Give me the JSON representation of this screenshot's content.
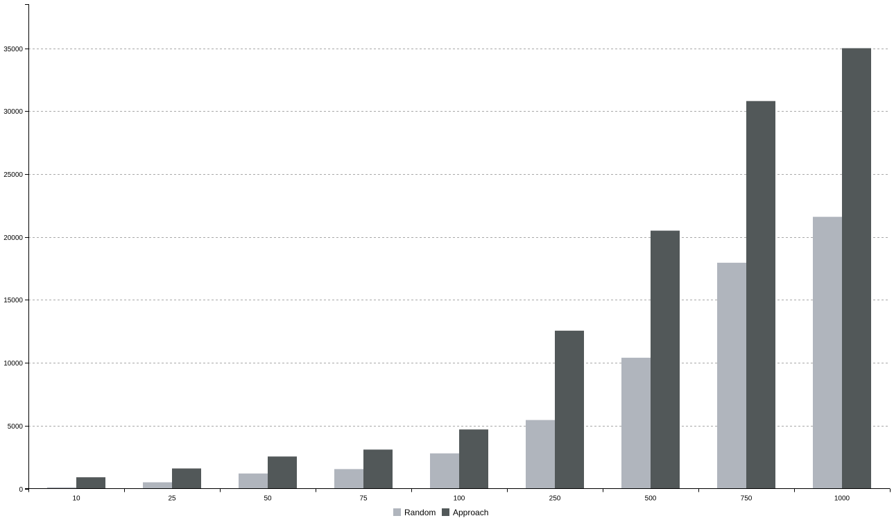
{
  "chart_data": {
    "type": "bar",
    "title": "",
    "xlabel": "",
    "ylabel": "",
    "categories": [
      "10",
      "25",
      "50",
      "75",
      "100",
      "250",
      "500",
      "750",
      "1000"
    ],
    "series": [
      {
        "name": "Random",
        "color": "#b0b5bd",
        "values": [
          100,
          500,
          1200,
          1550,
          2800,
          5450,
          10400,
          17950,
          21600
        ]
      },
      {
        "name": "Approach",
        "color": "#525859",
        "values": [
          900,
          1600,
          2550,
          3100,
          4700,
          12550,
          20500,
          30800,
          35000
        ]
      }
    ],
    "ylim": [
      0,
      38500
    ],
    "yticks": [
      "0",
      "5000",
      "10000",
      "15000",
      "20000",
      "25000",
      "30000",
      "35000"
    ],
    "grid": true,
    "grid_style": "dashed-horizontal",
    "legend_position": "bottom-center"
  }
}
